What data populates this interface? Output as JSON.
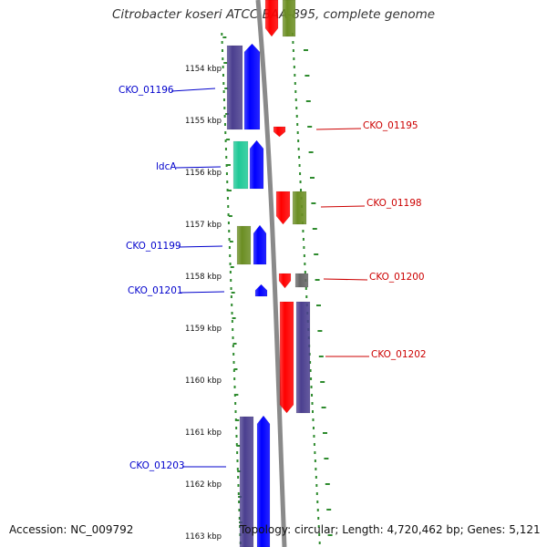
{
  "title": "Citrobacter koseri ATCC BAA-895, complete genome",
  "footer": {
    "accession": "Accession: NC_009792",
    "summary": "Topology: circular; Length: 4,720,462 bp; Genes: 5,121"
  },
  "ruler": {
    "unit": "kbp",
    "ticks": [
      1154,
      1155,
      1156,
      1157,
      1158,
      1159,
      1160,
      1161,
      1162,
      1163
    ]
  },
  "colors": {
    "forward_label": "#0000cc",
    "reverse_label": "#cc0000",
    "dots": "#2e8b2e",
    "backbone": "#8a8a8a",
    "gene_blue": "#0000ff",
    "gene_navy": "#4b3f8f",
    "gene_olive": "#6b8e23",
    "gene_red": "#ff0000",
    "gene_teal": "#20c997",
    "gene_gray": "#666666"
  },
  "labels": [
    {
      "text": "CKO_01196",
      "strand": "left"
    },
    {
      "text": "ldcA",
      "strand": "left"
    },
    {
      "text": "CKO_01199",
      "strand": "left"
    },
    {
      "text": "CKO_01201",
      "strand": "left"
    },
    {
      "text": "CKO_01203",
      "strand": "left"
    },
    {
      "text": "CKO_01195",
      "strand": "right"
    },
    {
      "text": "CKO_01198",
      "strand": "right"
    },
    {
      "text": "CKO_01200",
      "strand": "right"
    },
    {
      "text": "CKO_01202",
      "strand": "right"
    }
  ]
}
